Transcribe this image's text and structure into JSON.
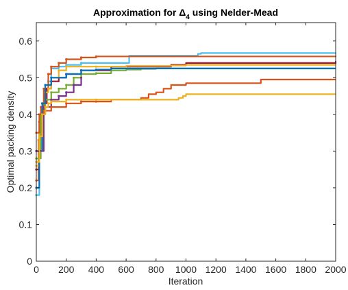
{
  "chart_data": {
    "type": "line",
    "title": {
      "prefix": "Approximation for ",
      "symbol": "Δ",
      "subscript": "4",
      "suffix": " using Nelder-Mead"
    },
    "xlabel": "Iteration",
    "ylabel": "Optimal packing density",
    "xlim": [
      0,
      2000
    ],
    "ylim": [
      0,
      0.65
    ],
    "xticks": [
      0,
      200,
      400,
      600,
      800,
      1000,
      1200,
      1400,
      1600,
      1800,
      2000
    ],
    "yticks": [
      0,
      0.1,
      0.2,
      0.3,
      0.4,
      0.5,
      0.6
    ],
    "ytick_labels": [
      "0",
      "0.1",
      "0.2",
      "0.3",
      "0.4",
      "0.5",
      "0.6"
    ],
    "grid": false,
    "legend": "none",
    "series": [
      {
        "color": "#4DBEEE",
        "x": [
          0,
          20,
          40,
          60,
          80,
          100,
          150,
          200,
          300,
          500,
          600,
          620,
          1000,
          1080,
          1100,
          2000
        ],
        "y": [
          0.18,
          0.35,
          0.43,
          0.47,
          0.49,
          0.525,
          0.53,
          0.535,
          0.54,
          0.54,
          0.54,
          0.56,
          0.56,
          0.565,
          0.567,
          0.568
        ]
      },
      {
        "color": "#D95319",
        "x": [
          0,
          15,
          30,
          50,
          80,
          100,
          150,
          200,
          300,
          400,
          600,
          2000
        ],
        "y": [
          0.22,
          0.33,
          0.42,
          0.47,
          0.51,
          0.53,
          0.54,
          0.55,
          0.555,
          0.558,
          0.558,
          0.56
        ]
      },
      {
        "color": "#A2142F",
        "x": [
          0,
          20,
          40,
          70,
          100,
          150,
          200,
          300,
          500,
          900,
          1000,
          2000
        ],
        "y": [
          0.25,
          0.38,
          0.43,
          0.47,
          0.49,
          0.5,
          0.51,
          0.52,
          0.53,
          0.535,
          0.54,
          0.545
        ]
      },
      {
        "color": "#EDB120",
        "x": [
          0,
          20,
          40,
          60,
          80,
          100,
          150,
          200,
          400,
          600,
          900,
          1000,
          2000
        ],
        "y": [
          0.26,
          0.35,
          0.43,
          0.46,
          0.47,
          0.5,
          0.52,
          0.53,
          0.53,
          0.532,
          0.533,
          0.535,
          0.535
        ]
      },
      {
        "color": "#77AC30",
        "x": [
          0,
          30,
          60,
          100,
          150,
          200,
          250,
          300,
          400,
          500,
          600,
          700,
          800,
          2000
        ],
        "y": [
          0.28,
          0.4,
          0.44,
          0.46,
          0.47,
          0.48,
          0.5,
          0.51,
          0.512,
          0.52,
          0.522,
          0.524,
          0.525,
          0.525
        ]
      },
      {
        "color": "#0072BD",
        "x": [
          0,
          20,
          40,
          60,
          100,
          200,
          300,
          400,
          500,
          2000
        ],
        "y": [
          0.2,
          0.3,
          0.43,
          0.48,
          0.5,
          0.51,
          0.52,
          0.522,
          0.525,
          0.525
        ]
      },
      {
        "color": "#7E2F8E",
        "x": [
          0,
          50,
          100,
          150,
          200,
          250,
          300
        ],
        "y": [
          0.3,
          0.42,
          0.44,
          0.45,
          0.46,
          0.48,
          0.5
        ]
      },
      {
        "color": "#D95319",
        "x": [
          0,
          20,
          50,
          100,
          200,
          300,
          400,
          500,
          700,
          750,
          800,
          850,
          900,
          1000,
          1100,
          1400,
          1500,
          2000
        ],
        "y": [
          0.35,
          0.4,
          0.41,
          0.42,
          0.43,
          0.435,
          0.435,
          0.44,
          0.445,
          0.455,
          0.46,
          0.47,
          0.48,
          0.485,
          0.485,
          0.485,
          0.495,
          0.495
        ]
      },
      {
        "color": "#EDB120",
        "x": [
          0,
          20,
          40,
          60,
          80,
          100,
          200,
          400,
          600,
          900,
          950,
          980,
          1000,
          2000
        ],
        "y": [
          0.27,
          0.34,
          0.4,
          0.42,
          0.43,
          0.435,
          0.44,
          0.44,
          0.44,
          0.44,
          0.445,
          0.45,
          0.455,
          0.455
        ]
      }
    ]
  }
}
